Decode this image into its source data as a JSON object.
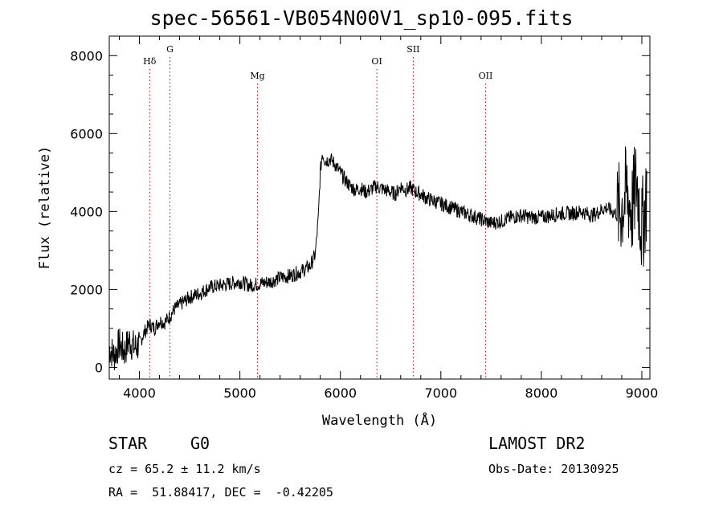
{
  "chart_data": {
    "type": "line",
    "title": "spec-56561-VB054N00V1_sp10-095.fits",
    "xlabel": "Wavelength (Å)",
    "ylabel": "Flux (relative)",
    "xlim": [
      3700,
      9080
    ],
    "ylim": [
      -300,
      8500
    ],
    "xticks": [
      4000,
      5000,
      6000,
      7000,
      8000,
      9000
    ],
    "yticks": [
      0,
      2000,
      4000,
      6000,
      8000
    ],
    "line_color": "#000000",
    "marker_color": "#cc0000",
    "lines": [
      {
        "label": "Hδ",
        "x": 4102,
        "level": "low"
      },
      {
        "label": "G",
        "x": 4304,
        "level": "high"
      },
      {
        "label": "Mg",
        "x": 5175,
        "level": "lower"
      },
      {
        "label": "OI",
        "x": 6363,
        "level": "low"
      },
      {
        "label": "SII",
        "x": 6725,
        "level": "high"
      },
      {
        "label": "OII",
        "x": 7445,
        "level": "lower"
      }
    ],
    "series": [
      {
        "x": [
          3700,
          3750,
          3800,
          3850,
          3900,
          3950,
          4000,
          4050,
          4100,
          4150,
          4200,
          4250,
          4300,
          4350,
          4400,
          4500,
          4600,
          4700,
          4800,
          4900,
          5000,
          5100,
          5200,
          5300,
          5400,
          5500,
          5600,
          5700,
          5750,
          5780,
          5800,
          5820,
          5850,
          5900,
          5950,
          6000,
          6050,
          6100,
          6150,
          6200,
          6250,
          6300,
          6350,
          6400,
          6450,
          6500,
          6550,
          6600,
          6650,
          6700,
          6750,
          6800,
          6850,
          6900,
          6950,
          7000,
          7100,
          7200,
          7300,
          7400,
          7500,
          7600,
          7700,
          7800,
          7900,
          8000,
          8100,
          8200,
          8300,
          8400,
          8500,
          8550,
          8600,
          8650,
          8700,
          8750,
          8800,
          8850,
          8900,
          8950,
          9000,
          9050
        ],
        "y": [
          500,
          300,
          600,
          400,
          700,
          500,
          600,
          900,
          1100,
          1000,
          1200,
          1150,
          1300,
          1500,
          1600,
          1800,
          1900,
          2050,
          2100,
          2150,
          2200,
          2100,
          2150,
          2200,
          2300,
          2350,
          2450,
          2600,
          2900,
          3800,
          5000,
          5500,
          5300,
          5350,
          5200,
          5000,
          4800,
          4650,
          4550,
          4600,
          4500,
          4550,
          4650,
          4600,
          4550,
          4500,
          4450,
          4650,
          4550,
          4600,
          4500,
          4450,
          4350,
          4300,
          4250,
          4200,
          4100,
          4000,
          3900,
          3800,
          3700,
          3750,
          3850,
          3900,
          3850,
          3850,
          3900,
          3950,
          3950,
          4000,
          3900,
          3950,
          4050,
          4100,
          4000,
          3950,
          4100,
          4500,
          4000,
          4800,
          3500,
          4500
        ]
      }
    ]
  },
  "info": {
    "object_class": "STAR",
    "subclass": "G0",
    "survey": "LAMOST DR2",
    "redshift": "cz = 65.2 ± 11.2 km/s",
    "obs_date": "Obs-Date: 20130925",
    "coords": "RA =  51.88417, DEC =  -0.42205"
  }
}
